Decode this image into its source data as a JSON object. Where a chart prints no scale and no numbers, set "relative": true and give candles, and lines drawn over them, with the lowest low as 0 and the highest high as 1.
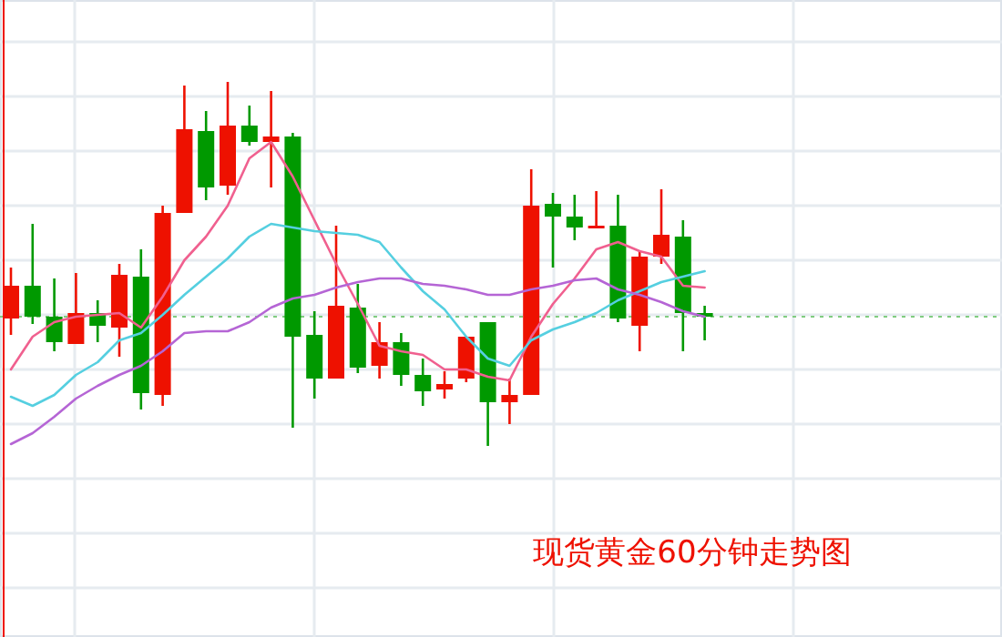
{
  "chart_data": {
    "type": "candlestick",
    "title": "现货黄金60分钟走势图",
    "relative": true,
    "grid": true,
    "categories": [
      null,
      null,
      null,
      null,
      null,
      null,
      null,
      null,
      null,
      null,
      null,
      null,
      null,
      null,
      null,
      null,
      null,
      null,
      null,
      null,
      null,
      null,
      null,
      null,
      null,
      null,
      null,
      null,
      null,
      null,
      null,
      null,
      null
    ],
    "ohlc": [
      [
        0.35,
        0.49,
        0.305,
        0.44
      ],
      [
        0.44,
        0.61,
        0.335,
        0.355
      ],
      [
        0.355,
        0.46,
        0.26,
        0.285
      ],
      [
        0.28,
        0.475,
        0.28,
        0.365
      ],
      [
        0.365,
        0.4,
        0.285,
        0.33
      ],
      [
        0.325,
        0.5,
        0.245,
        0.47
      ],
      [
        0.465,
        0.54,
        0.1,
        0.145
      ],
      [
        0.14,
        0.66,
        0.11,
        0.64
      ],
      [
        0.64,
        0.99,
        0.64,
        0.87
      ],
      [
        0.865,
        0.92,
        0.675,
        0.71
      ],
      [
        0.715,
        1,
        0.69,
        0.88
      ],
      [
        0.88,
        0.935,
        0.825,
        0.835
      ],
      [
        0.835,
        0.975,
        0.71,
        0.85
      ],
      [
        0.85,
        0.86,
        0.05,
        0.3
      ],
      [
        0.305,
        0.37,
        0.13,
        0.185
      ],
      [
        0.185,
        0.605,
        0.185,
        0.385
      ],
      [
        0.38,
        0.445,
        0.2,
        0.215
      ],
      [
        0.22,
        0.34,
        0.185,
        0.285
      ],
      [
        0.285,
        0.31,
        0.165,
        0.195
      ],
      [
        0.195,
        0.24,
        0.11,
        0.15
      ],
      [
        0.155,
        0.205,
        0.13,
        0.17
      ],
      [
        0.185,
        0.3,
        0.175,
        0.3
      ],
      [
        0.34,
        0.34,
        0,
        0.12
      ],
      [
        0.12,
        0.185,
        0.06,
        0.14
      ],
      [
        0.14,
        0.76,
        0.14,
        0.66
      ],
      [
        0.665,
        0.695,
        0.49,
        0.63
      ],
      [
        0.63,
        0.69,
        0.565,
        0.6
      ],
      [
        0.6,
        0.7,
        0.6,
        0.605
      ],
      [
        0.605,
        0.69,
        0.34,
        0.35
      ],
      [
        0.33,
        0.535,
        0.26,
        0.52
      ],
      [
        0.52,
        0.705,
        0.5,
        0.58
      ],
      [
        0.575,
        0.62,
        0.26,
        0.365
      ],
      [
        0.365,
        0.385,
        0.29,
        0.355
      ]
    ],
    "colors": [
      "#ee1100",
      "#009900",
      "#009900",
      "#ee1100",
      "#009900",
      "#ee1100",
      "#009900",
      "#ee1100",
      "#ee1100",
      "#009900",
      "#ee1100",
      "#009900",
      "#ee1100",
      "#009900",
      "#009900",
      "#ee1100",
      "#009900",
      "#ee1100",
      "#009900",
      "#009900",
      "#ee1100",
      "#ee1100",
      "#009900",
      "#ee1100",
      "#ee1100",
      "#009900",
      "#009900",
      "#ee1100",
      "#009900",
      "#ee1100",
      "#ee1100",
      "#009900",
      "#009900"
    ],
    "series": [
      {
        "type": "line",
        "color": "#f0608f",
        "values": [
          0.21,
          0.3,
          0.34,
          0.355,
          0.36,
          0.365,
          0.325,
          0.41,
          0.51,
          0.575,
          0.66,
          0.79,
          0.835,
          0.74,
          0.62,
          0.5,
          0.39,
          0.275,
          0.26,
          0.25,
          0.21,
          0.21,
          0.19,
          0.18,
          0.3,
          0.39,
          0.46,
          0.54,
          0.56,
          0.535,
          0.52,
          0.44,
          0.435
        ]
      },
      {
        "type": "line",
        "color": "#55cfe0",
        "values": [
          0.135,
          0.11,
          0.14,
          0.195,
          0.23,
          0.29,
          0.31,
          0.36,
          0.415,
          0.465,
          0.515,
          0.575,
          0.61,
          0.6,
          0.59,
          0.585,
          0.58,
          0.56,
          0.49,
          0.425,
          0.375,
          0.3,
          0.24,
          0.22,
          0.29,
          0.32,
          0.34,
          0.365,
          0.4,
          0.425,
          0.45,
          0.465,
          0.48
        ]
      },
      {
        "type": "line",
        "color": "#b565d5",
        "values": [
          0.005,
          0.035,
          0.08,
          0.13,
          0.165,
          0.195,
          0.22,
          0.26,
          0.31,
          0.315,
          0.315,
          0.34,
          0.38,
          0.405,
          0.415,
          0.435,
          0.45,
          0.46,
          0.46,
          0.445,
          0.44,
          0.43,
          0.415,
          0.415,
          0.43,
          0.44,
          0.455,
          0.46,
          0.43,
          0.415,
          0.395,
          0.37,
          0.355
        ]
      }
    ],
    "ref_lines": [
      {
        "axis": "y",
        "value": 0.355,
        "color": "#80cc80",
        "line_style": "dotted"
      }
    ]
  }
}
